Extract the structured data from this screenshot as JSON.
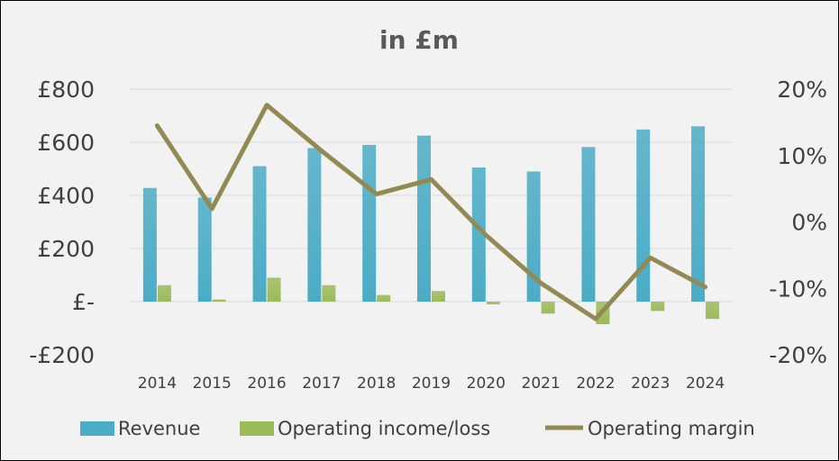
{
  "chart_data": {
    "type": "bar",
    "title": "in £m",
    "categories": [
      "2014",
      "2015",
      "2016",
      "2017",
      "2018",
      "2019",
      "2020",
      "2021",
      "2022",
      "2023",
      "2024"
    ],
    "series": [
      {
        "name": "Revenue",
        "kind": "bar",
        "axis": "left",
        "color": "#4bacc6",
        "values": [
          428,
          392,
          510,
          578,
          590,
          625,
          505,
          490,
          582,
          648,
          660
        ]
      },
      {
        "name": "Operating income/loss",
        "kind": "bar",
        "axis": "left",
        "color": "#9bbb59",
        "values": [
          62,
          8,
          90,
          62,
          25,
          40,
          -10,
          -45,
          -85,
          -35,
          -65
        ]
      },
      {
        "name": "Operating margin",
        "kind": "line",
        "axis": "right",
        "color": "#938953",
        "values": [
          14.5,
          2.0,
          17.6,
          10.7,
          4.2,
          6.4,
          -2.0,
          -9.2,
          -14.6,
          -5.4,
          -9.8
        ]
      }
    ],
    "y_left": {
      "min": -200,
      "max": 800,
      "step": 200,
      "tick_labels": [
        "-£200",
        "£-",
        "£200",
        "£400",
        "£600",
        "£800"
      ]
    },
    "y_right": {
      "min": -20,
      "max": 20,
      "step": 10,
      "tick_labels": [
        "-20%",
        "-10%",
        "0%",
        "10%",
        "20%"
      ]
    },
    "grid": true,
    "legend_position": "bottom"
  }
}
